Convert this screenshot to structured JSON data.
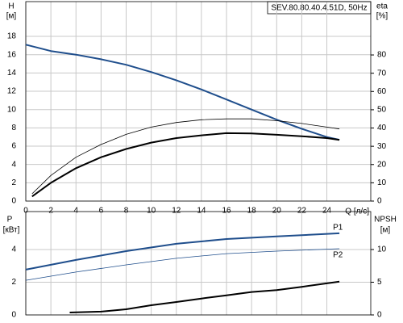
{
  "chart_data": [
    {
      "type": "line",
      "title": "SEV.80.80.40.4.51D, 50Hz",
      "ylabel": "H",
      "ylabel_unit": "[м]",
      "y2label": "eta",
      "y2label_unit": "[%]",
      "xlabel": "Q [л/с]",
      "xlim": [
        0,
        27.5
      ],
      "xticks": [
        0,
        2,
        4,
        6,
        8,
        10,
        12,
        14,
        16,
        18,
        20,
        22,
        24
      ],
      "ylim": [
        0,
        21.8
      ],
      "yticks": [
        0,
        2,
        4,
        6,
        8,
        10,
        12,
        14,
        16,
        18
      ],
      "y2lim": [
        0,
        109.2
      ],
      "y2ticks": [
        0,
        10,
        20,
        30,
        40,
        50,
        60,
        70,
        80
      ],
      "grid": true,
      "series": [
        {
          "color": "#1f4e8c",
          "width": 2,
          "x": [
            0,
            2,
            4,
            6,
            8,
            10,
            12,
            14,
            16,
            18,
            20,
            22,
            24,
            25
          ],
          "values": [
            17.1,
            16.4,
            16.0,
            15.5,
            14.9,
            14.1,
            13.2,
            12.2,
            11.1,
            10.0,
            8.9,
            7.9,
            7.0,
            6.7
          ]
        },
        {
          "color": "#000000",
          "width": 0.8,
          "axis": "y2",
          "x": [
            0.5,
            2,
            4,
            6,
            8,
            10,
            12,
            14,
            16,
            18,
            20,
            22,
            24,
            25
          ],
          "values": [
            4,
            14,
            24,
            31,
            36.5,
            40.5,
            43,
            44.5,
            45,
            45,
            44,
            42.5,
            40.5,
            39.5
          ]
        },
        {
          "color": "#000000",
          "width": 2,
          "axis": "y2",
          "x": [
            0.5,
            2,
            4,
            6,
            8,
            10,
            12,
            14,
            16,
            18,
            20,
            22,
            24,
            25
          ],
          "values": [
            2.5,
            10,
            18,
            24,
            28.5,
            32,
            34.5,
            36,
            37.2,
            37,
            36.3,
            35.5,
            34.5,
            33.5
          ]
        }
      ]
    },
    {
      "type": "line",
      "ylabel": "P",
      "ylabel_unit": "[кВт]",
      "y2label": "NPSH",
      "y2label_unit": "[м]",
      "xlim": [
        0,
        27.5
      ],
      "xticks": [
        0,
        2,
        4,
        6,
        8,
        10,
        12,
        14,
        16,
        18,
        20,
        22,
        24
      ],
      "ylim": [
        0,
        6.32
      ],
      "yticks": [
        0,
        2,
        4
      ],
      "y2lim": [
        0,
        15.8
      ],
      "y2ticks": [
        0,
        5,
        10
      ],
      "grid": true,
      "series": [
        {
          "name": "P1",
          "color": "#1f4e8c",
          "width": 2,
          "x": [
            0,
            4,
            8,
            12,
            16,
            20,
            25
          ],
          "values": [
            2.77,
            3.36,
            3.9,
            4.35,
            4.64,
            4.8,
            4.99
          ]
        },
        {
          "name": "P2",
          "color": "#1f4e8c",
          "width": 0.8,
          "x": [
            0,
            4,
            8,
            12,
            16,
            20,
            25
          ],
          "values": [
            2.12,
            2.62,
            3.06,
            3.46,
            3.75,
            3.9,
            4.05
          ]
        },
        {
          "color": "#000000",
          "width": 2,
          "axis": "y2",
          "x": [
            3.5,
            6,
            8,
            10,
            12,
            14,
            16,
            18,
            20,
            22,
            25
          ],
          "values": [
            0.37,
            0.5,
            0.86,
            1.48,
            1.98,
            2.5,
            3.0,
            3.5,
            3.8,
            4.3,
            5.1
          ]
        }
      ]
    }
  ]
}
